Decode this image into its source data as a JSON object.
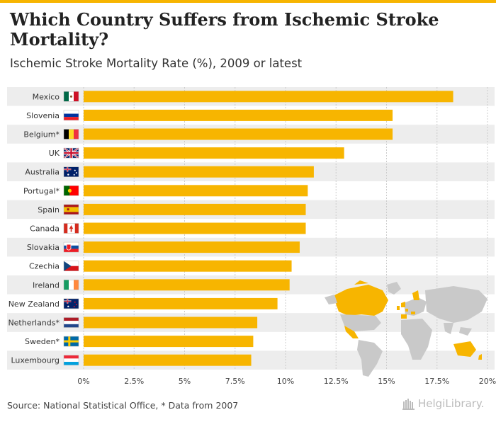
{
  "header": {
    "title": "Which Country Suffers from Ischemic Stroke Mortality?",
    "subtitle": "Ischemic Stroke Mortality Rate (%), 2009 or latest"
  },
  "footer": {
    "source": "Source: National Statistical Office, * Data from 2007",
    "brand": "HelgiLibrary."
  },
  "colors": {
    "bar": "#f7b500",
    "band": "#ededed",
    "grid": "#cccccc",
    "map_land": "#c9c9c9",
    "map_highlight": "#f7b500"
  },
  "chart_data": {
    "type": "bar",
    "orientation": "horizontal",
    "title": "Which Country Suffers from Ischemic Stroke Mortality?",
    "subtitle": "Ischemic Stroke Mortality Rate (%), 2009 or latest",
    "categories": [
      "Mexico",
      "Slovenia",
      "Belgium*",
      "UK",
      "Australia",
      "Portugal*",
      "Spain",
      "Canada",
      "Slovakia",
      "Czechia",
      "Ireland",
      "New Zealand",
      "Netherlands*",
      "Sweden*",
      "Luxembourg"
    ],
    "flags": [
      "mx",
      "si",
      "be",
      "uk",
      "au",
      "pt",
      "es",
      "ca",
      "sk",
      "cz",
      "ie",
      "nz",
      "nl",
      "se",
      "lu"
    ],
    "values": [
      18.3,
      15.3,
      15.3,
      12.9,
      11.4,
      11.1,
      11.0,
      11.0,
      10.7,
      10.3,
      10.2,
      9.6,
      8.6,
      8.4,
      8.3
    ],
    "xlim": [
      0,
      20
    ],
    "xticks": [
      0,
      2.5,
      5,
      7.5,
      10,
      12.5,
      15,
      17.5,
      20
    ],
    "xtick_labels": [
      "0%",
      "2.5%",
      "5%",
      "7.5%",
      "10%",
      "12.5%",
      "15%",
      "17.5%",
      "20%"
    ],
    "xlabel": "",
    "ylabel": "",
    "grid": true
  }
}
